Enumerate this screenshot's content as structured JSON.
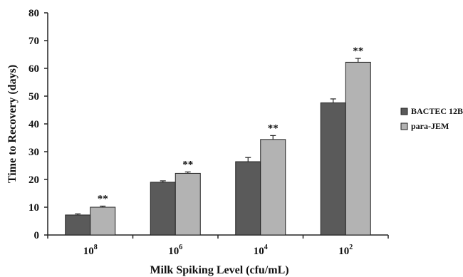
{
  "chart_data": {
    "type": "bar",
    "title": "",
    "xlabel": "Milk Spiking Level (cfu/mL)",
    "ylabel": "Time to Recovery (days)",
    "ylim": [
      0,
      80
    ],
    "yticks": [
      0,
      10,
      20,
      30,
      40,
      50,
      60,
      70,
      80
    ],
    "categories": [
      {
        "base": "10",
        "exp": "8"
      },
      {
        "base": "10",
        "exp": "6"
      },
      {
        "base": "10",
        "exp": "4"
      },
      {
        "base": "10",
        "exp": "2"
      }
    ],
    "series": [
      {
        "name": "BACTEC 12B",
        "color": "#5a5a5a",
        "values": [
          7.2,
          19.0,
          26.4,
          47.6
        ],
        "errors": [
          0.4,
          0.5,
          1.5,
          1.4
        ]
      },
      {
        "name": "para-JEM",
        "color": "#b3b3b3",
        "values": [
          10.0,
          22.2,
          34.4,
          62.2
        ],
        "errors": [
          0.4,
          0.5,
          1.4,
          1.4
        ]
      }
    ],
    "annotations": [
      "**",
      "**",
      "**",
      "**"
    ],
    "legend_position": "right",
    "grid": false
  }
}
